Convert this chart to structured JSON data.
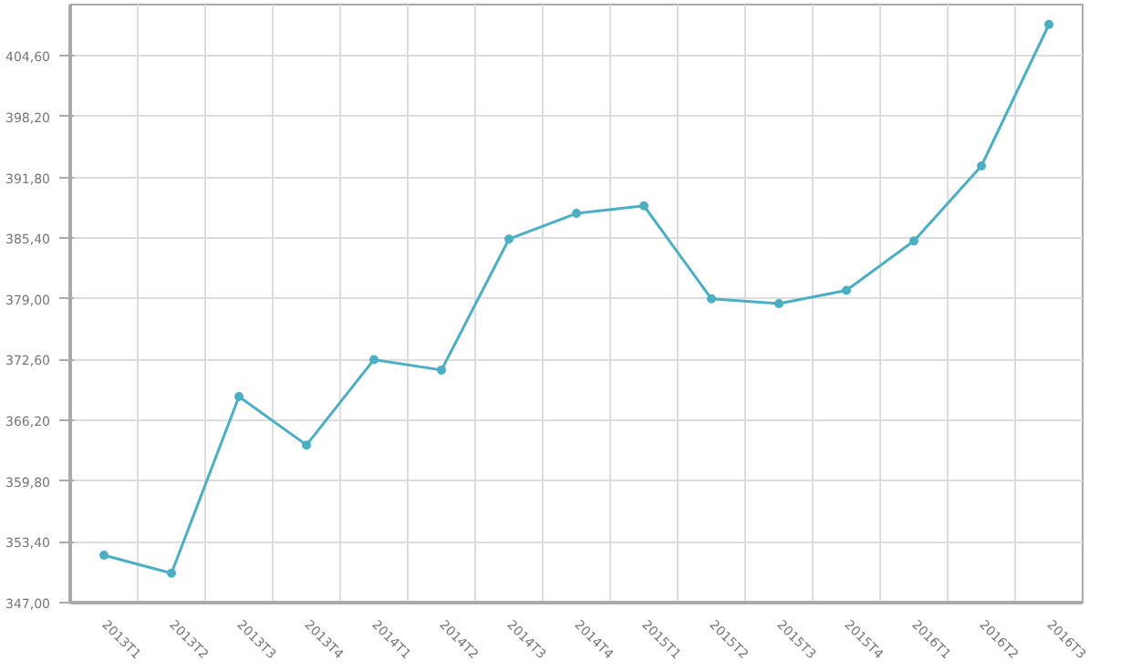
{
  "chart_data": {
    "type": "line",
    "categories": [
      "2013T1",
      "2013T2",
      "2013T3",
      "2013T4",
      "2014T1",
      "2014T2",
      "2014T3",
      "2014T4",
      "2015T1",
      "2015T2",
      "2015T3",
      "2015T4",
      "2016T1",
      "2016T2",
      "2016T3"
    ],
    "series": [
      {
        "color": "#4bafc4",
        "values": [
          352.0,
          350.1,
          368.7,
          363.6,
          372.6,
          371.5,
          385.3,
          388.0,
          388.8,
          379.0,
          378.5,
          379.9,
          385.1,
          393.0,
          407.9
        ]
      }
    ],
    "ylim": [
      347,
      410
    ],
    "yticks": [
      {
        "value": 347,
        "label": "347,00"
      },
      {
        "value": 353.4,
        "label": "353,40"
      },
      {
        "value": 359.8,
        "label": "359,80"
      },
      {
        "value": 366.2,
        "label": "366,20"
      },
      {
        "value": 372.6,
        "label": "372,60"
      },
      {
        "value": 379,
        "label": "379,00"
      },
      {
        "value": 385.4,
        "label": "385,40"
      },
      {
        "value": 391.8,
        "label": "391,80"
      },
      {
        "value": 398.2,
        "label": "398,20"
      },
      {
        "value": 404.6,
        "label": "404,60"
      }
    ],
    "grid": true,
    "marker": "circle",
    "line_style": "solid"
  }
}
